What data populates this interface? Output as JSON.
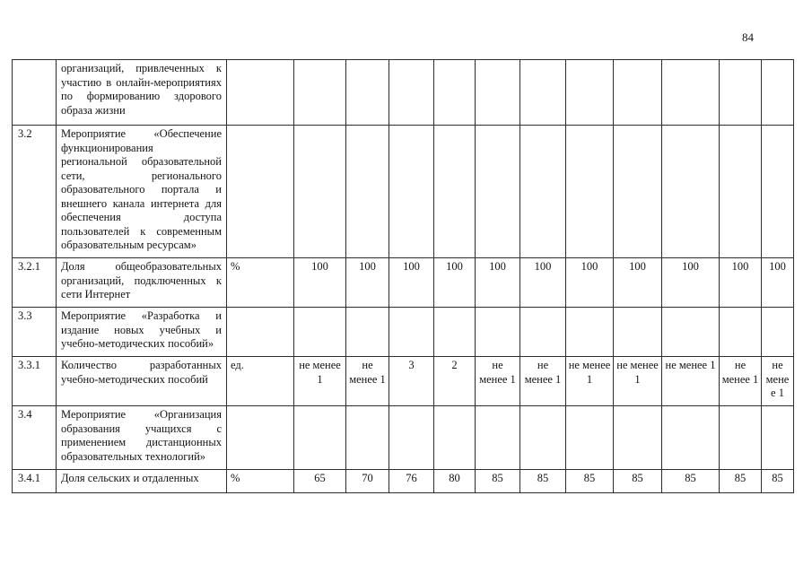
{
  "page": {
    "number": "84"
  },
  "table": {
    "rows": [
      {
        "num": "",
        "text": "организаций, привлеченных к участию в онлайн-мероприятиях по формированию здорового образа жизни",
        "unit": "",
        "values": [
          "",
          "",
          "",
          "",
          "",
          "",
          "",
          "",
          "",
          "",
          ""
        ]
      },
      {
        "num": "3.2",
        "text": "Мероприятие «Обеспечение функционирования региональной образовательной сети, регионального образовательного портала и внешнего канала интернета для обеспечения доступа пользователей к современным образовательным ресурсам»",
        "unit": "",
        "values": [
          "",
          "",
          "",
          "",
          "",
          "",
          "",
          "",
          "",
          "",
          ""
        ]
      },
      {
        "num": "3.2.1",
        "text": "Доля общеобразовательных организаций, подключенных к сети Интернет",
        "unit": "%",
        "values": [
          "100",
          "100",
          "100",
          "100",
          "100",
          "100",
          "100",
          "100",
          "100",
          "100",
          "100"
        ]
      },
      {
        "num": "3.3",
        "text": "Мероприятие «Разработка и издание новых учебных и учебно-методических пособий»",
        "unit": "",
        "values": [
          "",
          "",
          "",
          "",
          "",
          "",
          "",
          "",
          "",
          "",
          ""
        ]
      },
      {
        "num": "3.3.1",
        "text": "Количество разработанных учебно-методических пособий",
        "unit": "ед.",
        "values": [
          "не менее 1",
          "не менее 1",
          "3",
          "2",
          "не менее 1",
          "не менее 1",
          "не менее 1",
          "не менее 1",
          "не менее 1",
          "не менее 1",
          "не менее 1"
        ]
      },
      {
        "num": "3.4",
        "text": "Мероприятие «Организация образования учащихся с применением дистанционных образовательных технологий»",
        "unit": "",
        "values": [
          "",
          "",
          "",
          "",
          "",
          "",
          "",
          "",
          "",
          "",
          ""
        ]
      },
      {
        "num": "3.4.1",
        "text": "Доля сельских и отдаленных",
        "unit": "%",
        "values": [
          "65",
          "70",
          "76",
          "80",
          "85",
          "85",
          "85",
          "85",
          "85",
          "85",
          "85"
        ]
      }
    ]
  }
}
